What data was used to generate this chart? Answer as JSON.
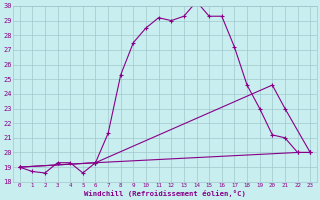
{
  "xlabel": "Windchill (Refroidissement éolien,°C)",
  "xlim": [
    0,
    23
  ],
  "ylim": [
    18,
    30
  ],
  "xticks": [
    0,
    1,
    2,
    3,
    4,
    5,
    6,
    7,
    8,
    9,
    10,
    11,
    12,
    13,
    14,
    15,
    16,
    17,
    18,
    19,
    20,
    21,
    22,
    23
  ],
  "yticks": [
    18,
    19,
    20,
    21,
    22,
    23,
    24,
    25,
    26,
    27,
    28,
    29,
    30
  ],
  "background_color": "#c8eef0",
  "line_color": "#880088",
  "grid_color": "#a0c8cc",
  "line1_y": [
    19.0,
    18.7,
    18.6,
    19.3,
    19.3,
    18.6,
    19.3,
    21.3,
    25.3,
    27.5,
    28.5,
    29.2,
    29.0,
    29.3,
    30.3,
    29.3,
    29.3,
    27.2,
    24.6,
    23.0,
    21.2,
    21.0,
    20.0,
    20.0
  ],
  "line2_x": [
    0,
    6,
    20,
    21,
    23
  ],
  "line2_y": [
    19.0,
    19.3,
    24.6,
    23.0,
    20.0
  ],
  "line3_x": [
    0,
    6,
    22,
    23
  ],
  "line3_y": [
    19.0,
    19.3,
    20.0,
    20.0
  ]
}
